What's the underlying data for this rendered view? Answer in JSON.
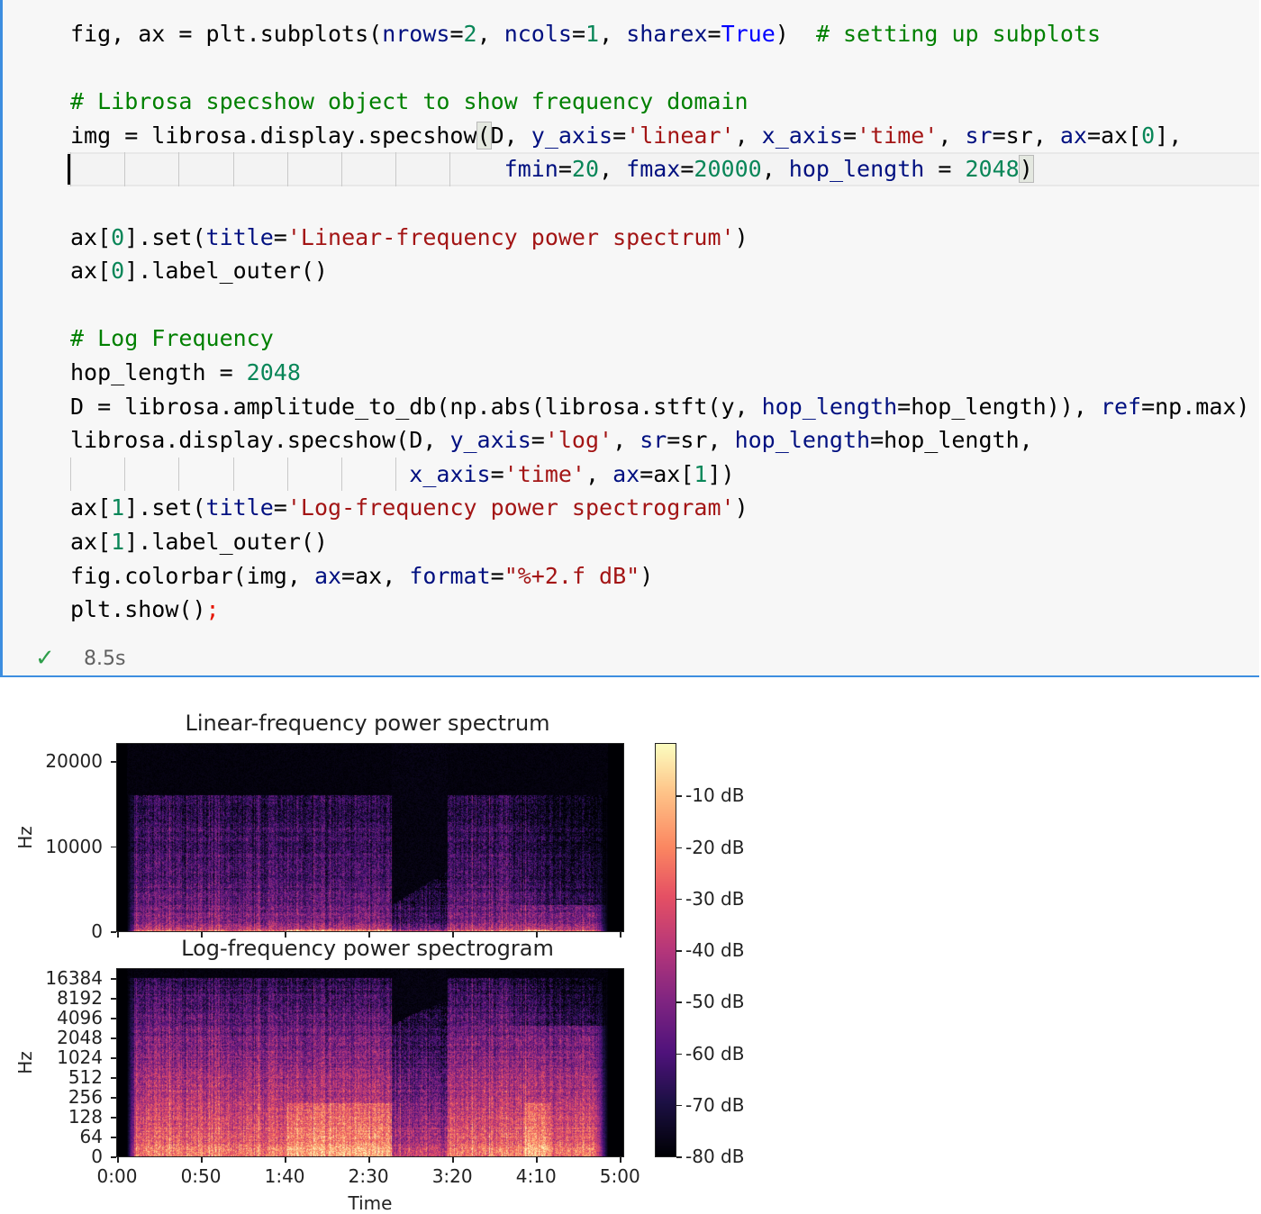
{
  "cell": {
    "lines": [
      [
        [
          "fig, ax = plt.subplots(",
          "d"
        ],
        [
          "nrows",
          "p"
        ],
        [
          "=",
          "d"
        ],
        [
          "2",
          "n"
        ],
        [
          ", ",
          "d"
        ],
        [
          "ncols",
          "p"
        ],
        [
          "=",
          "d"
        ],
        [
          "1",
          "n"
        ],
        [
          ", ",
          "d"
        ],
        [
          "sharex",
          "p"
        ],
        [
          "=",
          "d"
        ],
        [
          "True",
          "k"
        ],
        [
          ")  ",
          "d"
        ],
        [
          "# setting up subplots",
          "c"
        ]
      ],
      [],
      [
        [
          "# Librosa specshow object to show frequency domain",
          "c"
        ]
      ],
      [
        [
          "img = librosa.display.specshow",
          "d"
        ],
        [
          "(",
          "m"
        ],
        [
          "D, ",
          "d"
        ],
        [
          "y_axis",
          "p"
        ],
        [
          "=",
          "d"
        ],
        [
          "'linear'",
          "s"
        ],
        [
          ", ",
          "d"
        ],
        [
          "x_axis",
          "p"
        ],
        [
          "=",
          "d"
        ],
        [
          "'time'",
          "s"
        ],
        [
          ", ",
          "d"
        ],
        [
          "sr",
          "p"
        ],
        [
          "=sr, ",
          "d"
        ],
        [
          "ax",
          "p"
        ],
        [
          "=ax[",
          "d"
        ],
        [
          "0",
          "n"
        ],
        [
          "],",
          "d"
        ]
      ],
      [
        [
          "                                ",
          "d"
        ],
        [
          "fmin",
          "p"
        ],
        [
          "=",
          "d"
        ],
        [
          "20",
          "n"
        ],
        [
          ", ",
          "d"
        ],
        [
          "fmax",
          "p"
        ],
        [
          "=",
          "d"
        ],
        [
          "20000",
          "n"
        ],
        [
          ", ",
          "d"
        ],
        [
          "hop_length",
          "p"
        ],
        [
          " = ",
          "d"
        ],
        [
          "2048",
          "n"
        ],
        [
          ")",
          "m"
        ]
      ],
      [],
      [
        [
          "ax[",
          "d"
        ],
        [
          "0",
          "n"
        ],
        [
          "].set(",
          "d"
        ],
        [
          "title",
          "p"
        ],
        [
          "=",
          "d"
        ],
        [
          "'Linear-frequency power spectrum'",
          "s"
        ],
        [
          ")",
          "d"
        ]
      ],
      [
        [
          "ax[",
          "d"
        ],
        [
          "0",
          "n"
        ],
        [
          "].label_outer()",
          "d"
        ]
      ],
      [],
      [
        [
          "# Log Frequency",
          "c"
        ]
      ],
      [
        [
          "hop_length = ",
          "d"
        ],
        [
          "2048",
          "n"
        ]
      ],
      [
        [
          "D = librosa.amplitude_to_db(np.abs(librosa.stft(y, ",
          "d"
        ],
        [
          "hop_length",
          "p"
        ],
        [
          "=hop_length)), ",
          "d"
        ],
        [
          "ref",
          "p"
        ],
        [
          "=np.max)",
          "d"
        ]
      ],
      [
        [
          "librosa.display.specshow(D, ",
          "d"
        ],
        [
          "y_axis",
          "p"
        ],
        [
          "=",
          "d"
        ],
        [
          "'log'",
          "s"
        ],
        [
          ", ",
          "d"
        ],
        [
          "sr",
          "p"
        ],
        [
          "=sr, ",
          "d"
        ],
        [
          "hop_length",
          "p"
        ],
        [
          "=hop_length,",
          "d"
        ]
      ],
      [
        [
          "                         ",
          "d"
        ],
        [
          "x_axis",
          "p"
        ],
        [
          "=",
          "d"
        ],
        [
          "'time'",
          "s"
        ],
        [
          ", ",
          "d"
        ],
        [
          "ax",
          "p"
        ],
        [
          "=ax[",
          "d"
        ],
        [
          "1",
          "n"
        ],
        [
          "])",
          "d"
        ]
      ],
      [
        [
          "ax[",
          "d"
        ],
        [
          "1",
          "n"
        ],
        [
          "].set(",
          "d"
        ],
        [
          "title",
          "p"
        ],
        [
          "=",
          "d"
        ],
        [
          "'Log-frequency power spectrogram'",
          "s"
        ],
        [
          ")",
          "d"
        ]
      ],
      [
        [
          "ax[",
          "d"
        ],
        [
          "1",
          "n"
        ],
        [
          "].label_outer()",
          "d"
        ]
      ],
      [
        [
          "fig.colorbar(img, ",
          "d"
        ],
        [
          "ax",
          "p"
        ],
        [
          "=ax, ",
          "d"
        ],
        [
          "format",
          "p"
        ],
        [
          "=",
          "d"
        ],
        [
          "\"%+2.f dB\"",
          "s"
        ],
        [
          ")",
          "d"
        ]
      ],
      [
        [
          "plt.show()",
          "d"
        ],
        [
          ";",
          "r"
        ]
      ]
    ],
    "status_icon": "check-icon",
    "elapsed": "8.5s"
  },
  "chart_data": [
    {
      "type": "heatmap",
      "title": "Linear-frequency power spectrum",
      "ylabel": "Hz",
      "y_scale": "linear",
      "y_ticks": [
        "0",
        "10000",
        "20000"
      ],
      "ylim": [
        0,
        22050
      ],
      "xlim_seconds": [
        0,
        302
      ],
      "colormap": "magma",
      "spectral_cutoff_hz": 16000
    },
    {
      "type": "heatmap",
      "title": "Log-frequency power spectrogram",
      "ylabel": "Hz",
      "xlabel": "Time",
      "y_scale": "log",
      "y_ticks": [
        "0",
        "64",
        "128",
        "256",
        "512",
        "1024",
        "2048",
        "4096",
        "8192",
        "16384"
      ],
      "x_ticks": [
        "0:00",
        "0:50",
        "1:40",
        "2:30",
        "3:20",
        "4:10",
        "5:00"
      ],
      "xlim_seconds": [
        0,
        302
      ],
      "colormap": "magma"
    }
  ],
  "colorbar": {
    "ticks": [
      "-10 dB",
      "-20 dB",
      "-30 dB",
      "-40 dB",
      "-50 dB",
      "-60 dB",
      "-70 dB",
      "-80 dB"
    ],
    "range_db": [
      -80,
      0
    ],
    "colormap": "magma"
  }
}
